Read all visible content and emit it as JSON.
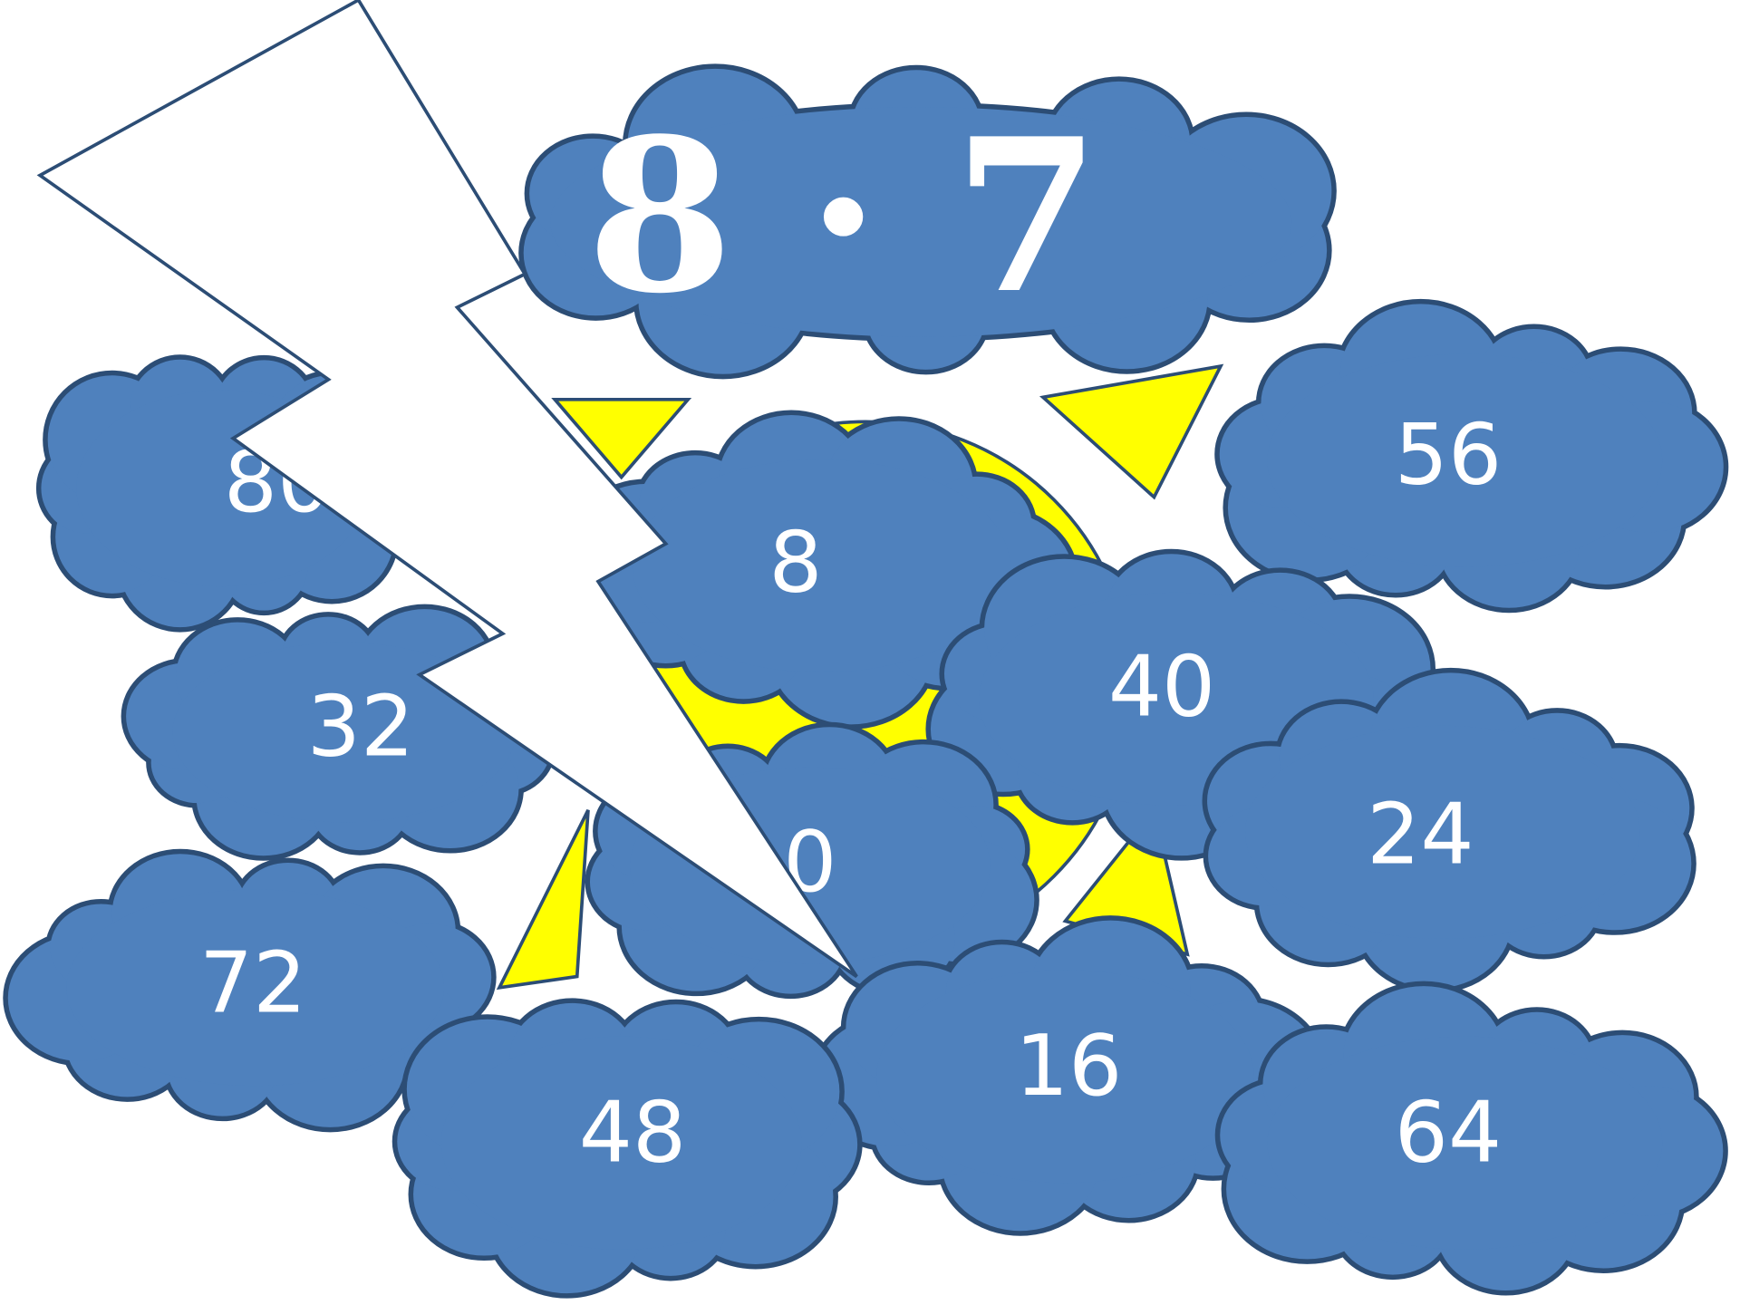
{
  "title": "8 · 7",
  "answers": [
    "80",
    "56",
    "8",
    "32",
    "40",
    "24",
    "0",
    "72",
    "16",
    "48",
    "64"
  ]
}
